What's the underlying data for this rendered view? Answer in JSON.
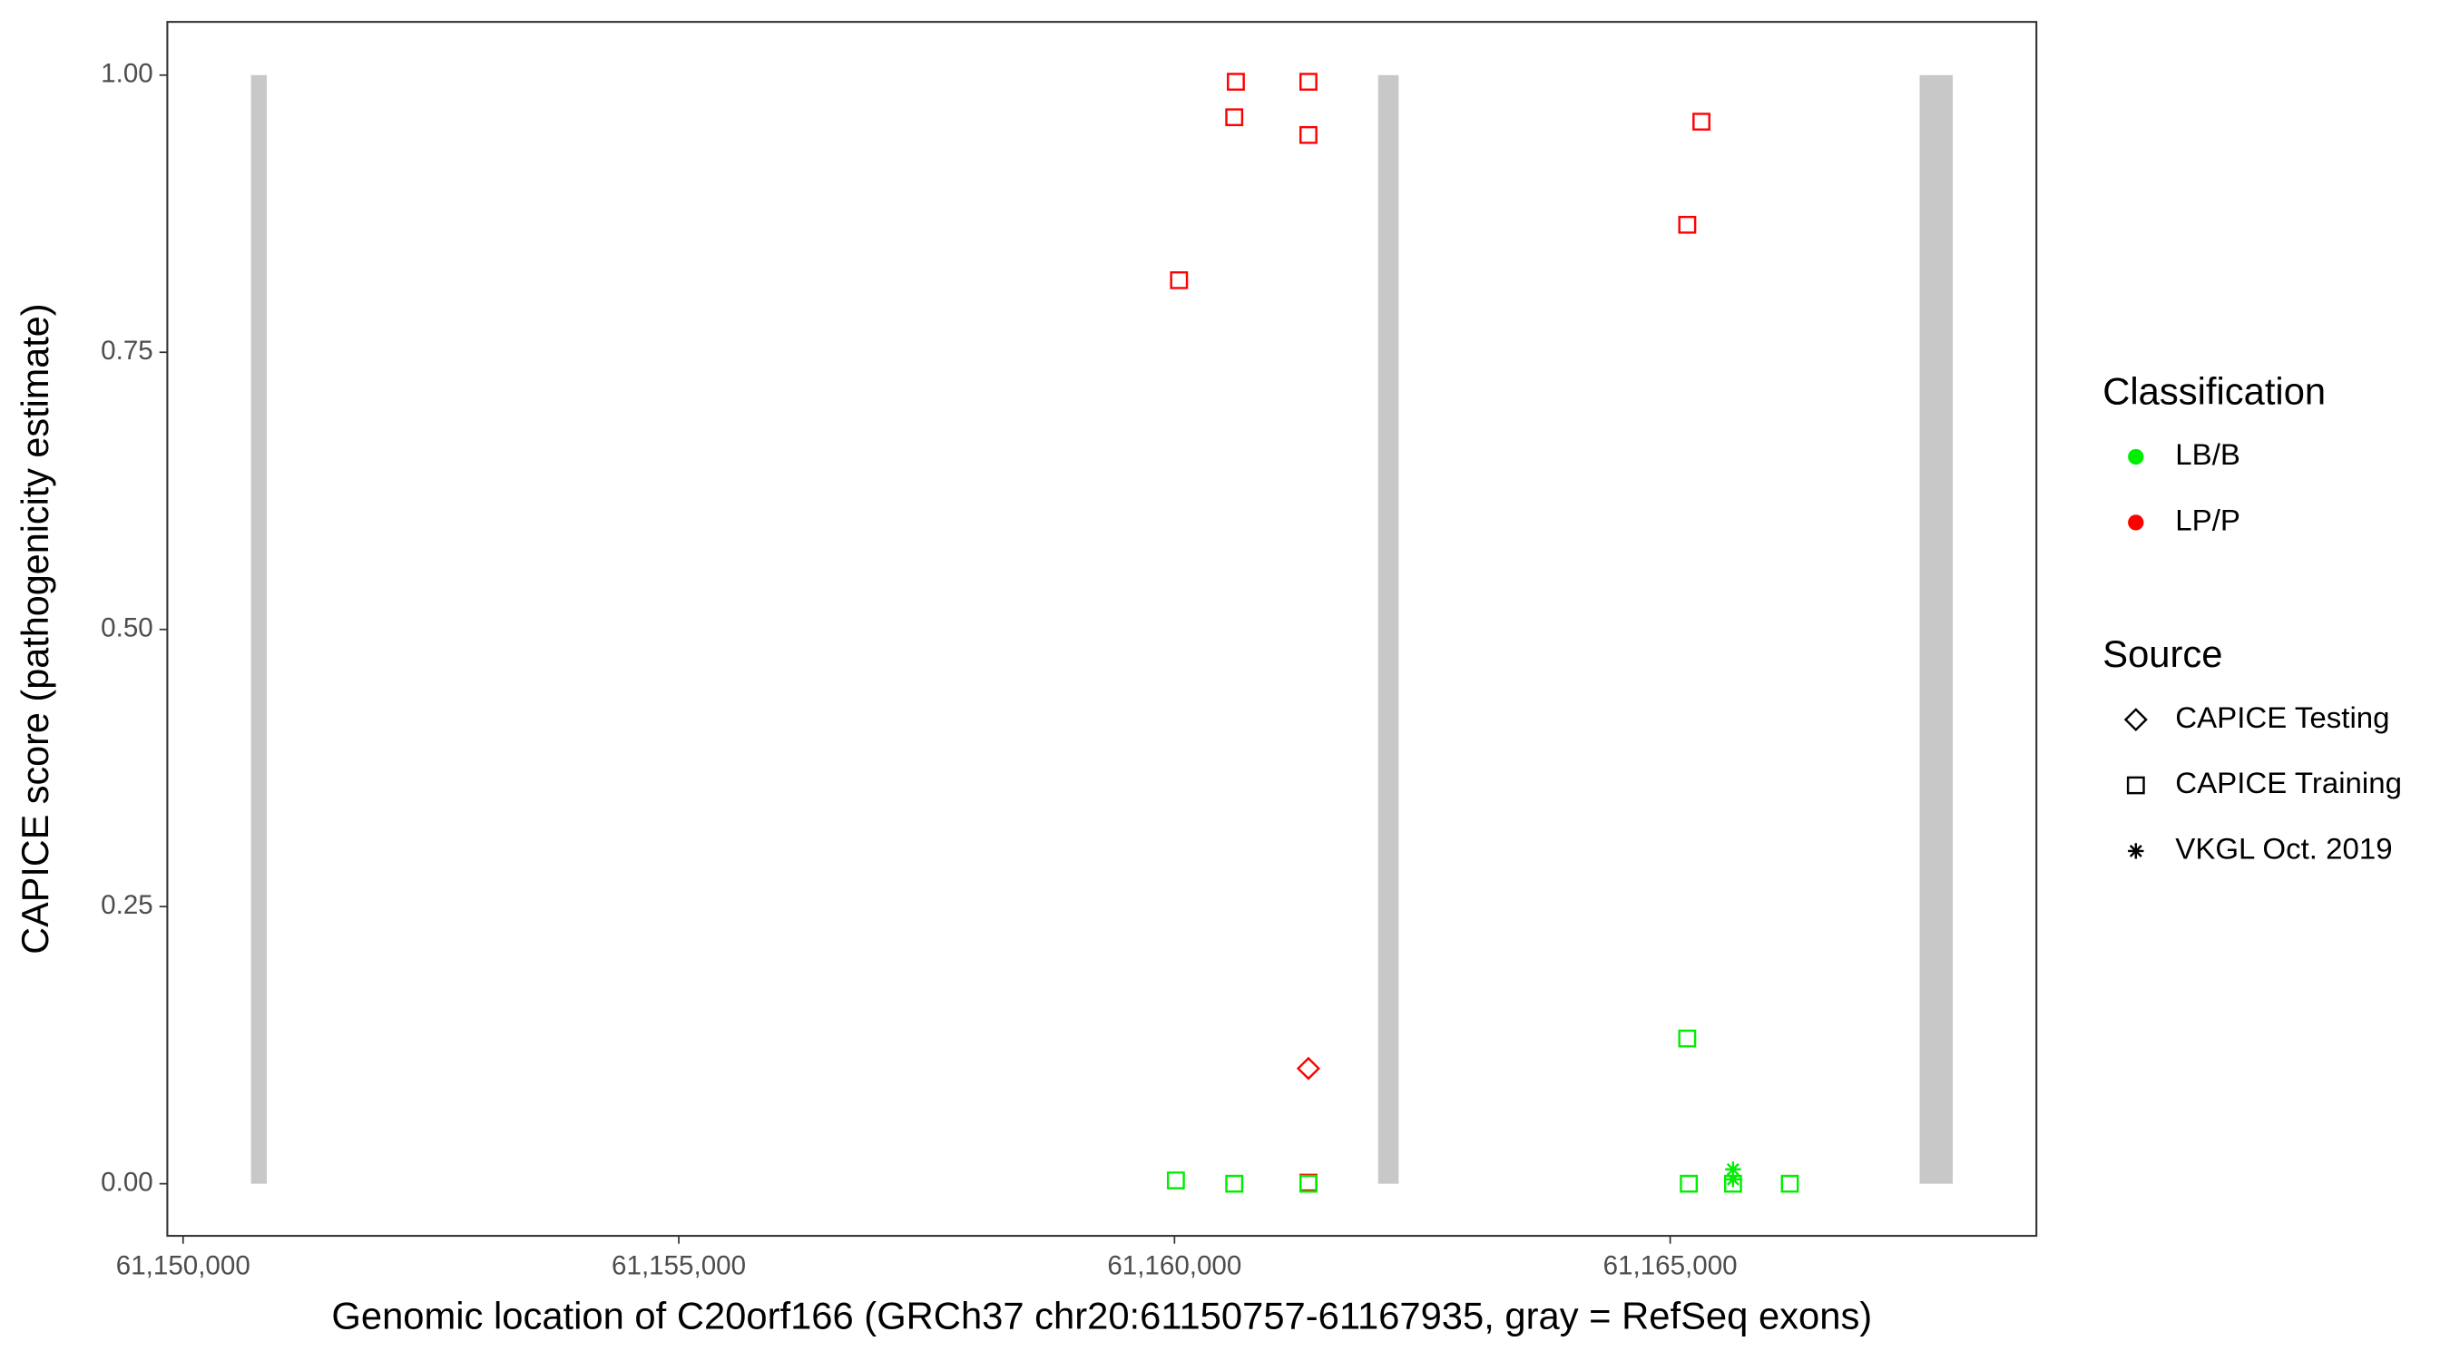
{
  "chart_data": {
    "type": "scatter",
    "x_label": "Genomic location of C20orf166 (GRCh37 chr20:61150757-61167935, gray = RefSeq exons)",
    "y_label": "CAPICE score (pathogenicity estimate)",
    "xlim": [
      61149841,
      61168694
    ],
    "ylim": [
      -0.047,
      1.048
    ],
    "xticks": [
      {
        "value": 61150000,
        "label": "61,150,000"
      },
      {
        "value": 61155000,
        "label": "61,155,000"
      },
      {
        "value": 61160000,
        "label": "61,160,000"
      },
      {
        "value": 61165000,
        "label": "61,165,000"
      }
    ],
    "yticks": [
      {
        "value": 0,
        "label": "0.00"
      },
      {
        "value": 0.25,
        "label": "0.25"
      },
      {
        "value": 0.5,
        "label": "0.50"
      },
      {
        "value": 0.75,
        "label": "0.75"
      },
      {
        "value": 1,
        "label": "1.00"
      }
    ],
    "exons": {
      "color": "#c8c8c8",
      "starts": [
        61150685,
        61162054,
        61167516
      ],
      "ends": [
        61150844,
        61162261,
        61167850
      ],
      "ylim": [
        0,
        1
      ]
    },
    "classification_legend": {
      "title": "Classification",
      "items": [
        {
          "name": "LB/B",
          "color": "#00ee00"
        },
        {
          "name": "LP/P",
          "color": "#ff0000"
        }
      ]
    },
    "source_legend": {
      "title": "Source",
      "items": [
        {
          "name": "CAPICE Testing",
          "shape": "diamond"
        },
        {
          "name": "CAPICE Training",
          "shape": "square"
        },
        {
          "name": "VKGL Oct. 2019",
          "shape": "asterisk"
        }
      ]
    },
    "series": [
      {
        "color": "#ff0000",
        "shape": "square",
        "x": [
          61160619,
          61161351,
          61160603,
          61161351,
          61160046,
          61165172,
          61165315,
          61161351
        ],
        "values": [
          0.994,
          0.994,
          0.962,
          0.946,
          0.815,
          0.865,
          0.958,
          0.001
        ]
      },
      {
        "color": "#ff0000",
        "shape": "diamond",
        "x": [
          61161351
        ],
        "values": [
          0.104
        ]
      },
      {
        "color": "#00ee00",
        "shape": "square",
        "x": [
          61160014,
          61160603,
          61161351,
          61165172,
          61165188,
          61165634,
          61166207
        ],
        "values": [
          0.003,
          0,
          0,
          0.131,
          0,
          0,
          0
        ]
      },
      {
        "color": "#00ee00",
        "shape": "asterisk",
        "x": [
          61165634,
          61165634
        ],
        "values": [
          0.013,
          0.004
        ]
      }
    ]
  }
}
